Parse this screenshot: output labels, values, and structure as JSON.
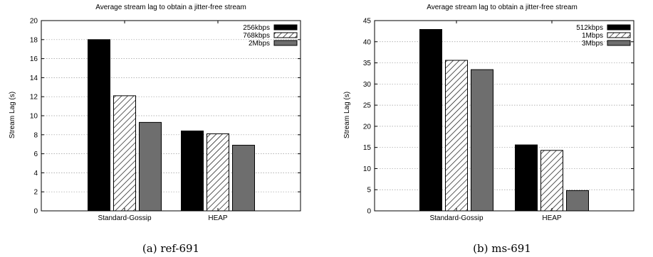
{
  "chart_data": [
    {
      "type": "bar",
      "title": "Average stream lag to obtain a jitter-free stream",
      "xlabel": "",
      "ylabel": "Stream Lag (s)",
      "caption": "(a) ref-691",
      "categories": [
        "Standard-Gossip",
        "HEAP"
      ],
      "series": [
        {
          "name": "256kbps",
          "values": [
            18.0,
            8.4
          ],
          "color": "#000000",
          "fill": "solid"
        },
        {
          "name": "768kbps",
          "values": [
            12.1,
            8.1
          ],
          "color": "#ffffff",
          "fill": "hatch"
        },
        {
          "name": "2Mbps",
          "values": [
            9.3,
            6.9
          ],
          "color": "#6e6e6e",
          "fill": "solid"
        }
      ],
      "ylim": [
        0,
        20
      ],
      "yticks": [
        "0",
        "2",
        "4",
        "6",
        "8",
        "10",
        "12",
        "14",
        "16",
        "18",
        "20"
      ],
      "grid": true,
      "legend": "top-right"
    },
    {
      "type": "bar",
      "title": "Average stream lag to obtain a jitter-free stream",
      "xlabel": "",
      "ylabel": "Stream Lag (s)",
      "caption": "(b) ms-691",
      "categories": [
        "Standard-Gossip",
        "HEAP"
      ],
      "series": [
        {
          "name": "512kbps",
          "values": [
            42.9,
            15.6
          ],
          "color": "#000000",
          "fill": "solid"
        },
        {
          "name": "1Mbps",
          "values": [
            35.6,
            14.3
          ],
          "color": "#ffffff",
          "fill": "hatch"
        },
        {
          "name": "3Mbps",
          "values": [
            33.4,
            4.8
          ],
          "color": "#6e6e6e",
          "fill": "solid"
        }
      ],
      "ylim": [
        0,
        45
      ],
      "yticks": [
        "0",
        "5",
        "10",
        "15",
        "20",
        "25",
        "30",
        "35",
        "40",
        "45"
      ],
      "grid": true,
      "legend": "top-right"
    }
  ]
}
